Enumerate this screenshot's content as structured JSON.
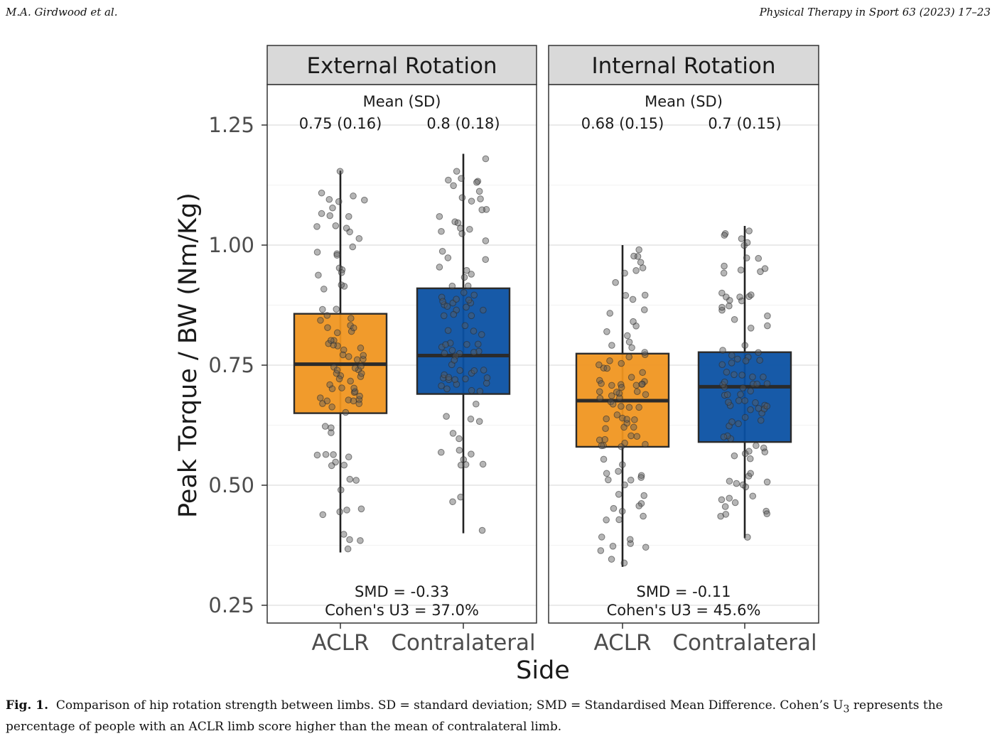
{
  "header": {
    "authors": "M.A. Girdwood et al.",
    "journal": "Physical Therapy in Sport 63 (2023) 17–23"
  },
  "caption": {
    "label": "Fig. 1.",
    "text": "Comparison of hip rotation strength between limbs. SD = standard deviation; SMD = Standardised Mean Difference. Cohen’s U",
    "sub": "3",
    "text_end": " represents the percentage of people with an ACLR limb score higher than the mean of contralateral limb."
  },
  "colors": {
    "aclr": "#f0951f",
    "contralateral": "#0950a3",
    "strip": "#d9d9d9",
    "grid": "#ebebeb"
  },
  "chart_data": {
    "type": "boxplot",
    "xlabel": "Side",
    "ylabel": "Peak Torque / BW (Nm/Kg)",
    "ylim": [
      0.22,
      1.33
    ],
    "yticks": [
      0.25,
      0.5,
      0.75,
      1.0,
      1.25
    ],
    "ytick_labels": [
      "0.25",
      "0.50",
      "0.75",
      "1.00",
      "1.25"
    ],
    "categories": [
      "ACLR",
      "Contralateral"
    ],
    "panels": [
      {
        "title": "External Rotation",
        "mean_header": "Mean (SD)",
        "boxes": [
          {
            "name": "ACLR",
            "mean_sd": "0.75 (0.16)",
            "whisker_low": 0.36,
            "q1": 0.65,
            "median": 0.752,
            "q3": 0.857,
            "whisker_high": 1.155
          },
          {
            "name": "Contralateral",
            "mean_sd": "0.8 (0.18)",
            "whisker_low": 0.4,
            "q1": 0.69,
            "median": 0.77,
            "q3": 0.91,
            "whisker_high": 1.19
          }
        ],
        "smd": "SMD = -0.33",
        "u3": "Cohen's U3 = 37.0%"
      },
      {
        "title": "Internal Rotation",
        "mean_header": "Mean (SD)",
        "boxes": [
          {
            "name": "ACLR",
            "mean_sd": "0.68 (0.15)",
            "whisker_low": 0.33,
            "q1": 0.58,
            "median": 0.676,
            "q3": 0.774,
            "whisker_high": 1.0
          },
          {
            "name": "Contralateral",
            "mean_sd": "0.7 (0.15)",
            "whisker_low": 0.39,
            "q1": 0.59,
            "median": 0.705,
            "q3": 0.777,
            "whisker_high": 1.04
          }
        ],
        "smd": "SMD = -0.11",
        "u3": "Cohen's U3 = 45.6%"
      }
    ]
  }
}
